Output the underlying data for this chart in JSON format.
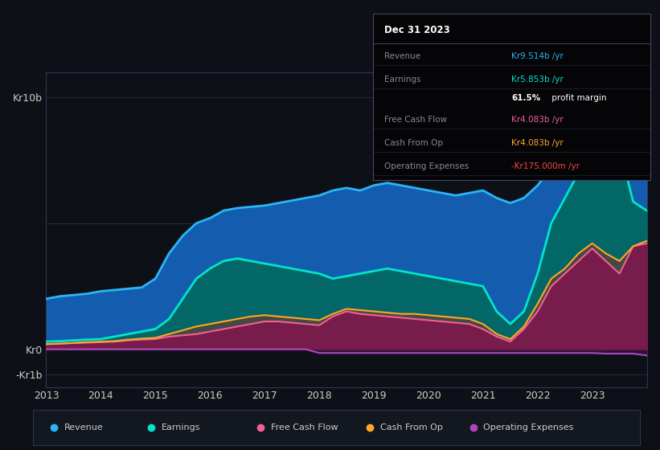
{
  "bg_color": "#0d1117",
  "plot_bg_color": "#0d1117",
  "ylim": [
    -1.5,
    11.0
  ],
  "series": {
    "years": [
      2013.0,
      2013.25,
      2013.5,
      2013.75,
      2014.0,
      2014.25,
      2014.5,
      2014.75,
      2015.0,
      2015.25,
      2015.5,
      2015.75,
      2016.0,
      2016.25,
      2016.5,
      2016.75,
      2017.0,
      2017.25,
      2017.5,
      2017.75,
      2018.0,
      2018.25,
      2018.5,
      2018.75,
      2019.0,
      2019.25,
      2019.5,
      2019.75,
      2020.0,
      2020.25,
      2020.5,
      2020.75,
      2021.0,
      2021.25,
      2021.5,
      2021.75,
      2022.0,
      2022.25,
      2022.5,
      2022.75,
      2023.0,
      2023.25,
      2023.5,
      2023.75,
      2024.0
    ],
    "revenue": [
      2.0,
      2.1,
      2.15,
      2.2,
      2.3,
      2.35,
      2.4,
      2.45,
      2.8,
      3.8,
      4.5,
      5.0,
      5.2,
      5.5,
      5.6,
      5.65,
      5.7,
      5.8,
      5.9,
      6.0,
      6.1,
      6.3,
      6.4,
      6.3,
      6.5,
      6.6,
      6.5,
      6.4,
      6.3,
      6.2,
      6.1,
      6.2,
      6.3,
      6.0,
      5.8,
      6.0,
      6.5,
      7.2,
      7.5,
      8.0,
      8.5,
      9.0,
      9.3,
      9.514,
      9.6
    ],
    "earnings": [
      0.3,
      0.32,
      0.35,
      0.38,
      0.4,
      0.5,
      0.6,
      0.7,
      0.8,
      1.2,
      2.0,
      2.8,
      3.2,
      3.5,
      3.6,
      3.5,
      3.4,
      3.3,
      3.2,
      3.1,
      3.0,
      2.8,
      2.9,
      3.0,
      3.1,
      3.2,
      3.1,
      3.0,
      2.9,
      2.8,
      2.7,
      2.6,
      2.5,
      1.5,
      1.0,
      1.5,
      3.0,
      5.0,
      6.0,
      7.0,
      8.5,
      9.5,
      8.0,
      5.853,
      5.5
    ],
    "free_cash_flow": [
      0.2,
      0.22,
      0.24,
      0.26,
      0.28,
      0.3,
      0.35,
      0.38,
      0.4,
      0.5,
      0.55,
      0.6,
      0.7,
      0.8,
      0.9,
      1.0,
      1.1,
      1.1,
      1.05,
      1.0,
      0.95,
      1.3,
      1.5,
      1.4,
      1.35,
      1.3,
      1.25,
      1.2,
      1.15,
      1.1,
      1.05,
      1.0,
      0.8,
      0.5,
      0.3,
      0.8,
      1.5,
      2.5,
      3.0,
      3.5,
      4.0,
      3.5,
      3.0,
      4.083,
      4.2
    ],
    "cash_from_op": [
      0.2,
      0.22,
      0.25,
      0.28,
      0.3,
      0.32,
      0.38,
      0.42,
      0.45,
      0.6,
      0.75,
      0.9,
      1.0,
      1.1,
      1.2,
      1.3,
      1.35,
      1.3,
      1.25,
      1.2,
      1.15,
      1.4,
      1.6,
      1.55,
      1.5,
      1.45,
      1.4,
      1.4,
      1.35,
      1.3,
      1.25,
      1.2,
      1.0,
      0.6,
      0.4,
      0.9,
      1.8,
      2.8,
      3.2,
      3.8,
      4.2,
      3.8,
      3.5,
      4.083,
      4.3
    ],
    "operating_expenses": [
      0.0,
      0.0,
      0.0,
      0.0,
      0.0,
      0.0,
      0.0,
      0.0,
      0.0,
      0.0,
      0.0,
      0.0,
      0.0,
      0.0,
      0.0,
      0.0,
      0.0,
      0.0,
      0.0,
      0.0,
      -0.15,
      -0.15,
      -0.15,
      -0.15,
      -0.15,
      -0.15,
      -0.15,
      -0.15,
      -0.15,
      -0.15,
      -0.15,
      -0.15,
      -0.15,
      -0.15,
      -0.15,
      -0.15,
      -0.15,
      -0.15,
      -0.15,
      -0.15,
      -0.15,
      -0.175,
      -0.175,
      -0.175,
      -0.25
    ]
  },
  "colors": {
    "revenue_line": "#29b6f6",
    "revenue_fill": "#1565c0",
    "earnings_line": "#00e5cc",
    "earnings_fill": "#00695c",
    "free_cash_flow_line": "#f06292",
    "free_cash_flow_fill": "#880e4f",
    "cash_from_op_line": "#ffa726",
    "cash_from_op_fill": "#5d4037",
    "operating_expenses_line": "#ab47bc",
    "operating_expenses_fill": "#3a1a4a"
  },
  "legend": [
    {
      "label": "Revenue",
      "color": "#29b6f6"
    },
    {
      "label": "Earnings",
      "color": "#00e5cc"
    },
    {
      "label": "Free Cash Flow",
      "color": "#f06292"
    },
    {
      "label": "Cash From Op",
      "color": "#ffa726"
    },
    {
      "label": "Operating Expenses",
      "color": "#ab47bc"
    }
  ],
  "xtick_years": [
    2013,
    2014,
    2015,
    2016,
    2017,
    2018,
    2019,
    2020,
    2021,
    2022,
    2023
  ],
  "text_color": "#aaaaaa",
  "axis_label_color": "#cccccc",
  "info_box": {
    "date": "Dec 31 2023",
    "rows": [
      {
        "label": "Revenue",
        "value": "Kr9.514b /yr",
        "value_color": "#29b6f6"
      },
      {
        "label": "Earnings",
        "value": "Kr5.853b /yr",
        "value_color": "#00e5cc"
      },
      {
        "label": "",
        "value": "61.5% profit margin",
        "value_color": "#ffffff"
      },
      {
        "label": "Free Cash Flow",
        "value": "Kr4.083b /yr",
        "value_color": "#f06292"
      },
      {
        "label": "Cash From Op",
        "value": "Kr4.083b /yr",
        "value_color": "#ffa726"
      },
      {
        "label": "Operating Expenses",
        "value": "-Kr175.000m /yr",
        "value_color": "#ff4444"
      }
    ]
  }
}
